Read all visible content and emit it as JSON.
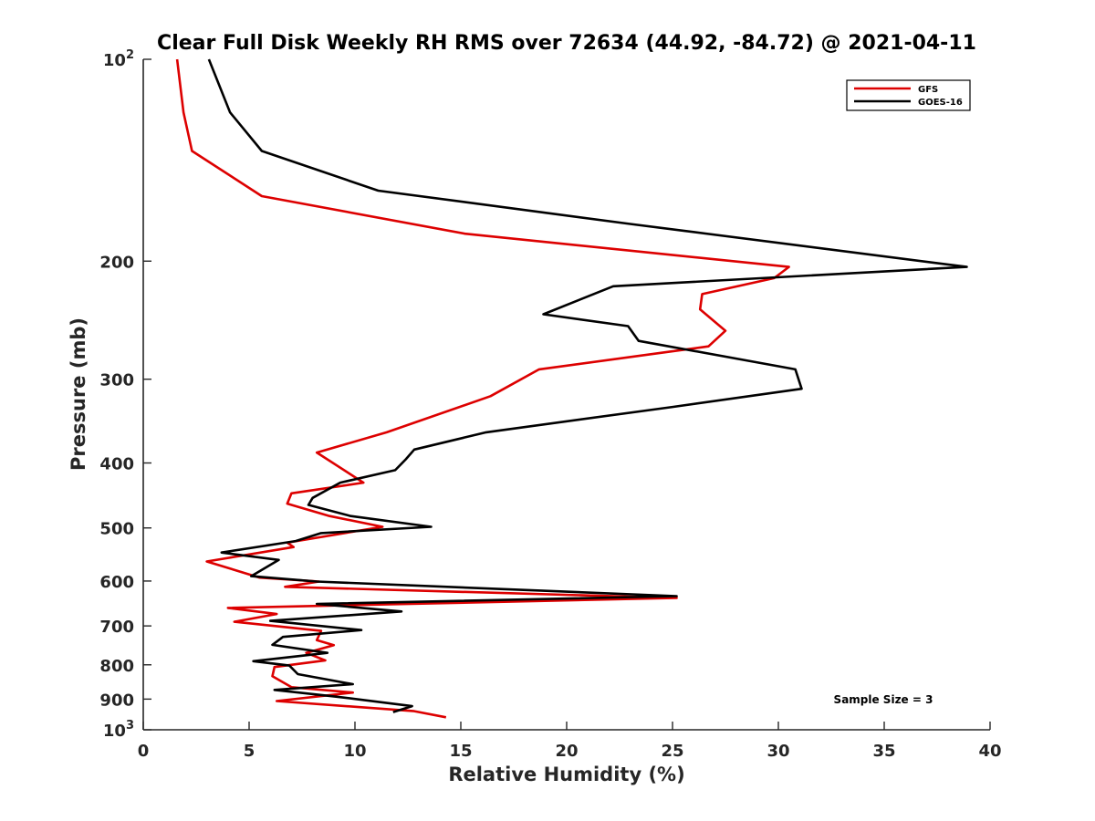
{
  "chart_data": {
    "type": "line",
    "title": "Clear Full Disk Weekly RH RMS over 72634 (44.92, -84.72) @ 2021-04-11",
    "xlabel": "Relative Humidity (%)",
    "ylabel": "Pressure (mb)",
    "xlim": [
      0,
      40
    ],
    "ylim": [
      100,
      1000
    ],
    "yscale": "log",
    "y_reversed": true,
    "x_ticks": [
      "0",
      "5",
      "10",
      "15",
      "20",
      "25",
      "30",
      "35",
      "40"
    ],
    "y_ticks": [
      {
        "value": 100,
        "base": "10",
        "exp": "2"
      },
      {
        "value": 200,
        "label": "200"
      },
      {
        "value": 300,
        "label": "300"
      },
      {
        "value": 400,
        "label": "400"
      },
      {
        "value": 500,
        "label": "500"
      },
      {
        "value": 600,
        "label": "600"
      },
      {
        "value": 700,
        "label": "700"
      },
      {
        "value": 800,
        "label": "800"
      },
      {
        "value": 900,
        "label": "900"
      },
      {
        "value": 1000,
        "base": "10",
        "exp": "3"
      }
    ],
    "legend_position": "top-right",
    "annotation": "Sample Size = 3",
    "series": [
      {
        "name": "GFS",
        "color": "#dd0000",
        "x": [
          1.6,
          1.9,
          2.3,
          5.6,
          15.2,
          30.5,
          29.8,
          26.4,
          26.3,
          27.5,
          26.7,
          18.7,
          16.4,
          11.5,
          8.2,
          10.4,
          7.0,
          6.8,
          8.8,
          11.3,
          6.8,
          7.1,
          3.0,
          5.5,
          8.3,
          6.7,
          25.2,
          4.0,
          6.3,
          4.3,
          8.4,
          8.2,
          9.0,
          7.7,
          8.6,
          6.2,
          6.1,
          7.0,
          9.9,
          6.3,
          12.8,
          14.3
        ],
        "y": [
          100,
          120,
          137,
          160,
          182,
          204,
          212,
          224,
          236,
          254,
          268,
          290,
          318,
          360,
          386,
          428,
          444,
          460,
          480,
          498,
          526,
          534,
          561,
          593,
          601,
          612,
          636,
          658,
          672,
          690,
          712,
          735,
          748,
          768,
          788,
          806,
          832,
          864,
          880,
          906,
          938,
          958
        ],
        "points_count": 42
      },
      {
        "name": "GOES-16",
        "color": "#000000",
        "x": [
          3.1,
          4.1,
          5.6,
          11.1,
          23.0,
          38.9,
          22.2,
          18.9,
          22.9,
          23.4,
          30.8,
          31.1,
          25.0,
          16.2,
          12.8,
          12.4,
          11.9,
          9.3,
          8.0,
          7.8,
          9.8,
          13.6,
          8.4,
          7.2,
          3.7,
          6.4,
          5.1,
          8.2,
          25.2,
          8.2,
          12.2,
          6.0,
          10.3,
          6.6,
          6.1,
          8.7,
          5.2,
          6.9,
          7.3,
          9.9,
          6.2,
          9.2,
          12.7,
          11.8
        ],
        "y": [
          100,
          120,
          137,
          157,
          176,
          204,
          218,
          240,
          250,
          263,
          290,
          310,
          330,
          360,
          382,
          395,
          410,
          428,
          451,
          462,
          480,
          498,
          509,
          523,
          544,
          558,
          590,
          601,
          632,
          649,
          666,
          688,
          710,
          727,
          747,
          768,
          790,
          802,
          826,
          855,
          872,
          893,
          922,
          941
        ],
        "points_count": 44
      }
    ]
  }
}
